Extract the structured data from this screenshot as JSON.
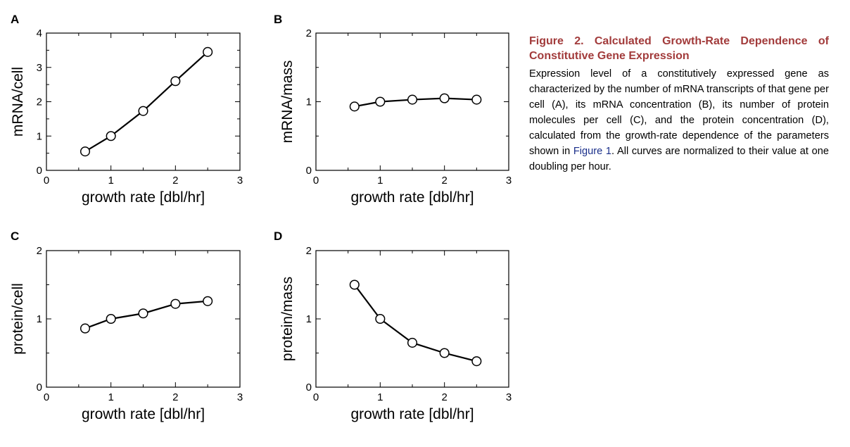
{
  "caption": {
    "title": "Figure 2. Calculated Growth-Rate Dependence of Constitutive Gene Expression",
    "body_before": "Expression level of a constitutively expressed gene as characterized by the number of mRNA transcripts of that gene per cell (A), its mRNA concentration (B), its number of protein molecules per cell (C), and the protein concen­tration (D), calculated from the growth-rate dependence of the parameters shown in ",
    "link": "Figure 1",
    "body_after": ". All curves are nor­malized to their value at one doubling per hour.",
    "title_color": "#a23b3b",
    "link_color": "#1a2f8a"
  },
  "chart_data": [
    {
      "panel": "A",
      "type": "line",
      "xlabel": "growth rate [dbl/hr]",
      "ylabel": "mRNA/cell",
      "xlim": [
        0,
        3
      ],
      "ylim": [
        0,
        4
      ],
      "xticks": [
        0,
        1,
        2,
        3
      ],
      "yticks": [
        0,
        1,
        2,
        3,
        4
      ],
      "x": [
        0.6,
        1.0,
        1.5,
        2.0,
        2.5
      ],
      "y": [
        0.55,
        1.0,
        1.73,
        2.6,
        3.45
      ]
    },
    {
      "panel": "B",
      "type": "line",
      "xlabel": "growth rate [dbl/hr]",
      "ylabel": "mRNA/mass",
      "xlim": [
        0,
        3
      ],
      "ylim": [
        0,
        2
      ],
      "xticks": [
        0,
        1,
        2,
        3
      ],
      "yticks": [
        0,
        1,
        2
      ],
      "x": [
        0.6,
        1.0,
        1.5,
        2.0,
        2.5
      ],
      "y": [
        0.93,
        1.0,
        1.03,
        1.05,
        1.03
      ]
    },
    {
      "panel": "C",
      "type": "line",
      "xlabel": "growth rate [dbl/hr]",
      "ylabel": "protein/cell",
      "xlim": [
        0,
        3
      ],
      "ylim": [
        0,
        2
      ],
      "xticks": [
        0,
        1,
        2,
        3
      ],
      "yticks": [
        0,
        1,
        2
      ],
      "x": [
        0.6,
        1.0,
        1.5,
        2.0,
        2.5
      ],
      "y": [
        0.86,
        1.0,
        1.08,
        1.22,
        1.26
      ]
    },
    {
      "panel": "D",
      "type": "line",
      "xlabel": "growth rate [dbl/hr]",
      "ylabel": "protein/mass",
      "xlim": [
        0,
        3
      ],
      "ylim": [
        0,
        2
      ],
      "xticks": [
        0,
        1,
        2,
        3
      ],
      "yticks": [
        0,
        1,
        2
      ],
      "x": [
        0.6,
        1.0,
        1.5,
        2.0,
        2.5
      ],
      "y": [
        1.5,
        1.0,
        0.65,
        0.5,
        0.38
      ]
    }
  ]
}
